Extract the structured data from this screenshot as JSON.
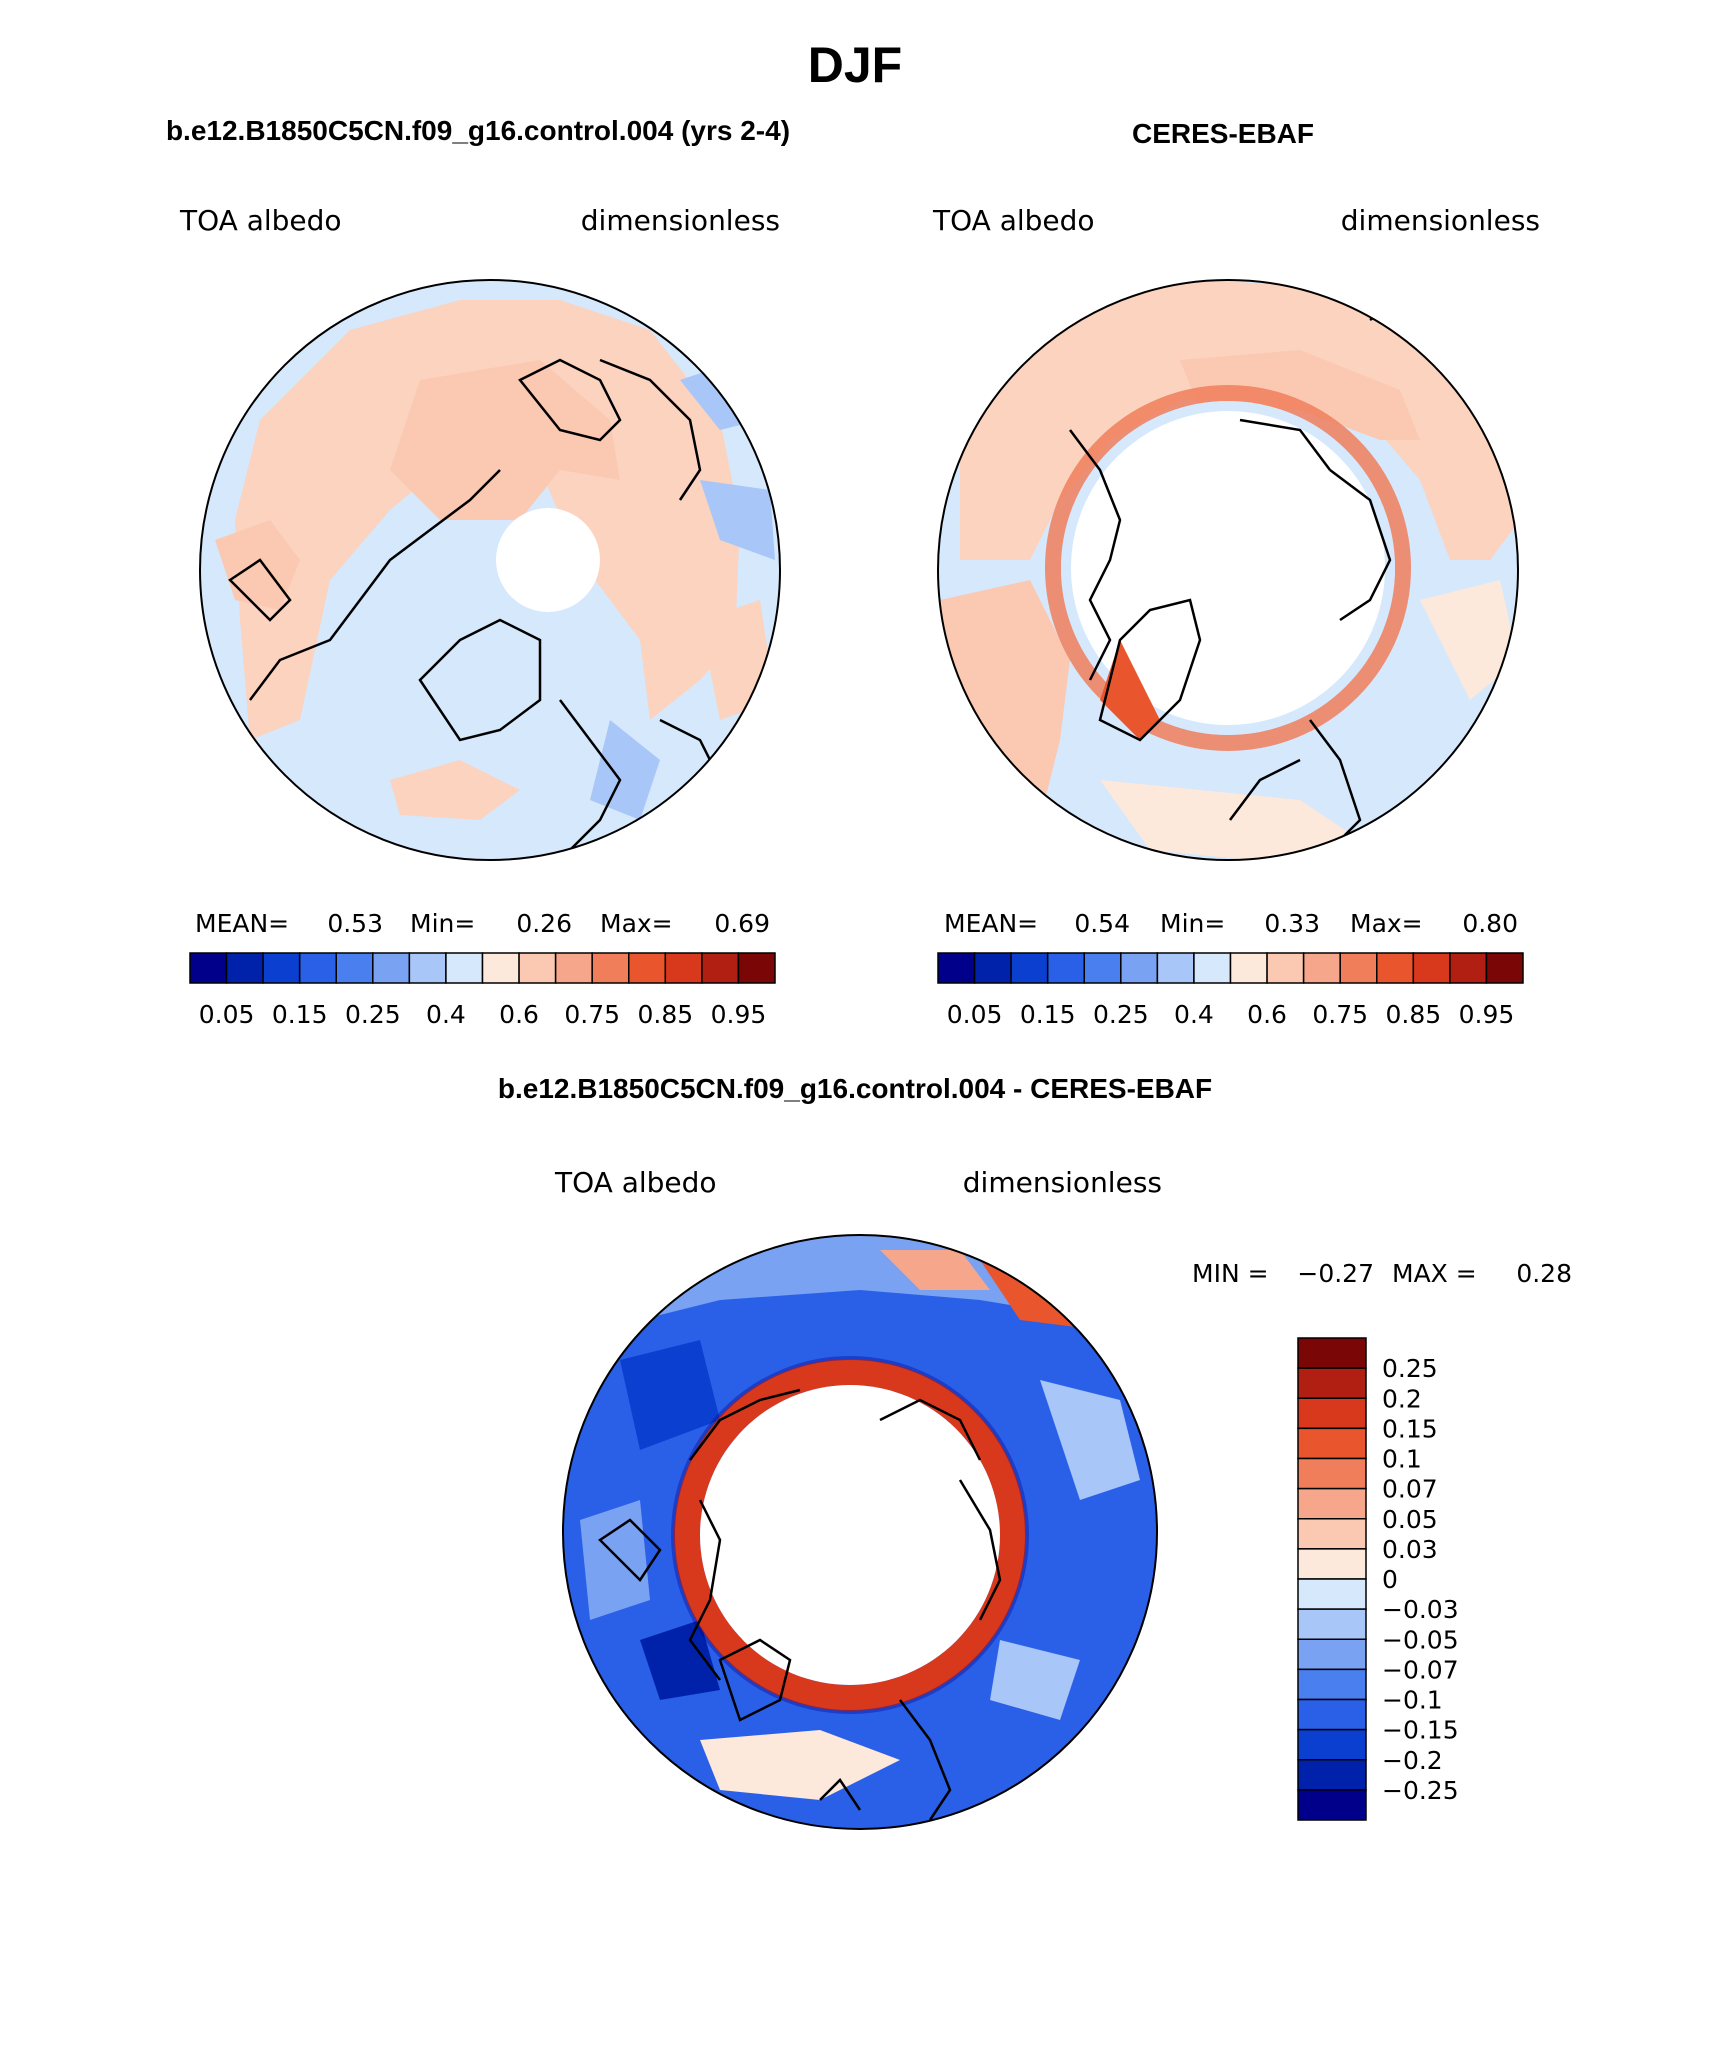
{
  "figure": {
    "title": "DJF",
    "panel_left_title": "b.e12.B1850C5CN.f09_g16.control.004 (yrs 2-4)",
    "panel_right_title": "CERES-EBAF",
    "panel_diff_title": "b.e12.B1850C5CN.f09_g16.control.004 - CERES-EBAF"
  },
  "panels": {
    "model": {
      "variable": "TOA albedo",
      "units": "dimensionless",
      "mean_label": "MEAN=",
      "mean": "0.53",
      "min_label": "Min=",
      "min": "0.26",
      "max_label": "Max=",
      "max": "0.69"
    },
    "obs": {
      "variable": "TOA albedo",
      "units": "dimensionless",
      "mean_label": "MEAN=",
      "mean": "0.54",
      "min_label": "Min=",
      "min": "0.33",
      "max_label": "Max=",
      "max": "0.80"
    },
    "diff": {
      "variable": "TOA albedo",
      "units": "dimensionless",
      "min_label": "MIN =",
      "min": "−0.27",
      "max_label": "MAX =",
      "max": "0.28"
    }
  },
  "colorbars": {
    "abs": {
      "colors": [
        "#00008b",
        "#0022aa",
        "#0a3fd0",
        "#2a5fe8",
        "#4a7ff0",
        "#7aa2f2",
        "#a8c6f7",
        "#d5e8fc",
        "#fde8dc",
        "#fbc9b2",
        "#f6a68a",
        "#f07e5a",
        "#e9562e",
        "#d8381c",
        "#b01f12",
        "#7a0606"
      ],
      "labels": [
        "0.05",
        "0.15",
        "0.25",
        "0.4",
        "0.6",
        "0.75",
        "0.85",
        "0.95"
      ]
    },
    "diff": {
      "colors": [
        "#7a0606",
        "#b01f12",
        "#d8381c",
        "#e9562e",
        "#f07e5a",
        "#f6a68a",
        "#fbc9b2",
        "#fde8dc",
        "#d5e8fc",
        "#a8c6f7",
        "#7aa2f2",
        "#4a7ff0",
        "#2a5fe8",
        "#0a3fd0",
        "#0022aa",
        "#00008b"
      ],
      "labels": [
        "0.25",
        "0.2",
        "0.15",
        "0.1",
        "0.07",
        "0.05",
        "0.03",
        "0",
        "−0.03",
        "−0.05",
        "−0.07",
        "−0.1",
        "−0.15",
        "−0.2",
        "−0.25"
      ]
    }
  }
}
